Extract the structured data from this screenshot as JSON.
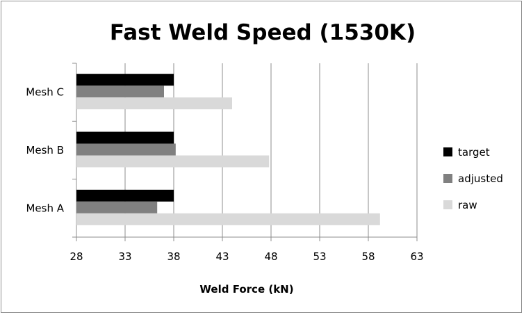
{
  "chart_data": {
    "type": "bar",
    "orientation": "horizontal",
    "title": "Fast Weld Speed (1530K)",
    "xlabel": "Weld Force (kN)",
    "ylabel": "",
    "xlim": [
      28,
      63
    ],
    "xticks": [
      "28",
      "33",
      "38",
      "43",
      "48",
      "53",
      "58",
      "63"
    ],
    "categories": [
      "Mesh A",
      "Mesh B",
      "Mesh C"
    ],
    "series": [
      {
        "name": "target",
        "color": "#000000",
        "values": [
          38,
          38,
          38
        ]
      },
      {
        "name": "adjusted",
        "color": "#808080",
        "values": [
          36.3,
          38.2,
          37
        ]
      },
      {
        "name": "raw",
        "color": "#d9d9d9",
        "values": [
          59.2,
          47.8,
          44
        ]
      }
    ],
    "grid": "vertical-major",
    "legend": "right"
  }
}
